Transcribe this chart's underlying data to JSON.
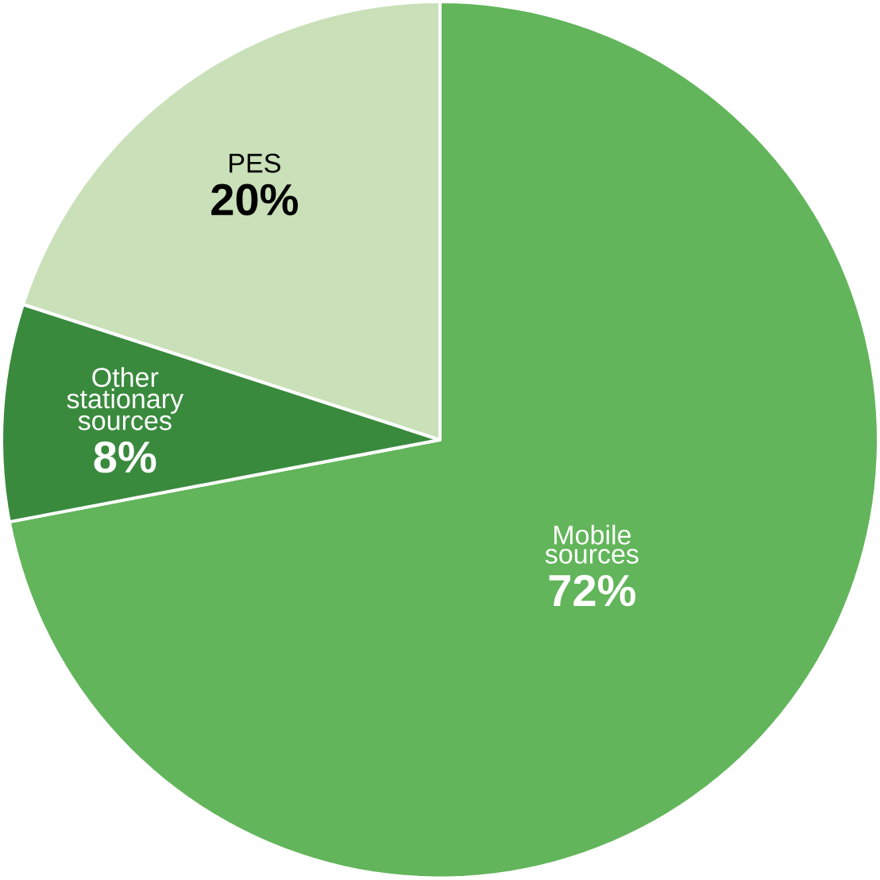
{
  "chart_data": {
    "type": "pie",
    "categories": [
      "Mobile sources",
      "Other stationary sources",
      "PES"
    ],
    "values": [
      72,
      8,
      20
    ],
    "value_labels": [
      "72%",
      "8%",
      "20%"
    ],
    "colors": [
      "#62b55a",
      "#3a8a3e",
      "#c9e0b8"
    ]
  }
}
